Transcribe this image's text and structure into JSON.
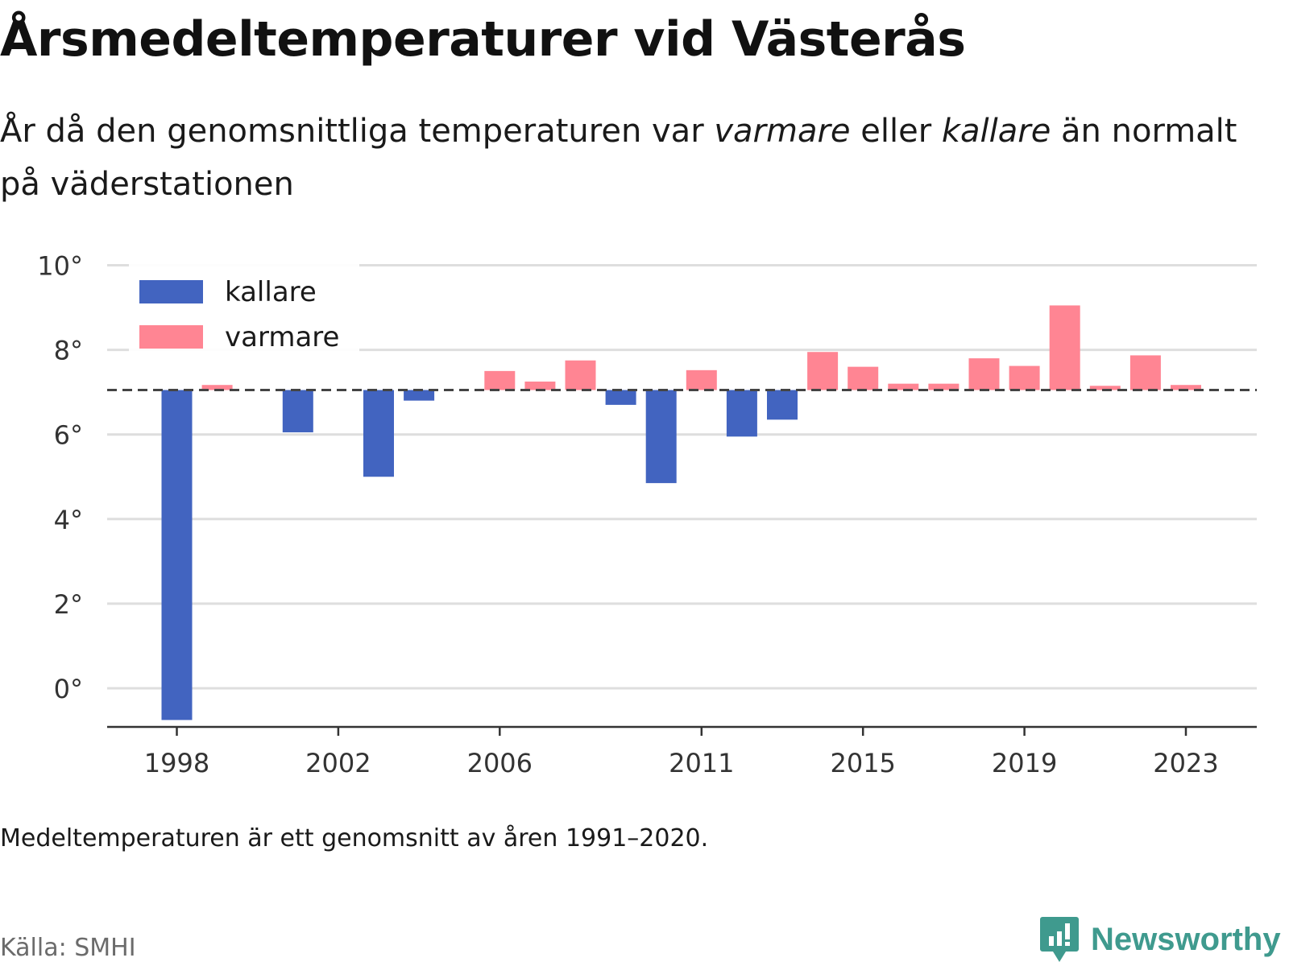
{
  "title": "Årsmedeltemperaturer vid Västerås",
  "subtitle": {
    "part1": "År då den genomsnittliga temperaturen var ",
    "warm_word": "varmare",
    "part2": " eller ",
    "cold_word": "kallare",
    "part3": " än normalt på väderstationen"
  },
  "note": "Medeltemperaturen är ett genomsnitt av åren 1991–2020.",
  "source": "Källa: SMHI",
  "brand": {
    "name": "Newsworthy",
    "icon": "newsworthy-logo-icon",
    "color": "#3f9a8e"
  },
  "colors": {
    "cold": "#4264c0",
    "warm": "#ff8593",
    "grid": "#dedede",
    "axis": "#333333",
    "reference": "#444444"
  },
  "chart_data": {
    "type": "bar",
    "reference_value": 7.05,
    "ylim": [
      -0.9,
      10
    ],
    "yticks": [
      0,
      2,
      4,
      6,
      8,
      10
    ],
    "ytick_labels": [
      "0°",
      "2°",
      "4°",
      "6°",
      "8°",
      "10°"
    ],
    "xtick_labels": [
      "1998",
      "2002",
      "2006",
      "2011",
      "2015",
      "2019",
      "2023"
    ],
    "grid": true,
    "legend_position": "top-left",
    "series": [
      {
        "name": "kallare",
        "color": "#4264c0"
      },
      {
        "name": "varmare",
        "color": "#ff8593"
      }
    ],
    "years": [
      1998,
      1999,
      2000,
      2001,
      2002,
      2003,
      2004,
      2005,
      2006,
      2007,
      2008,
      2009,
      2010,
      2011,
      2012,
      2013,
      2014,
      2015,
      2016,
      2017,
      2018,
      2019,
      2020,
      2021,
      2022,
      2023
    ],
    "values": [
      -0.75,
      7.17,
      null,
      6.05,
      null,
      5.0,
      6.8,
      null,
      7.5,
      7.25,
      7.75,
      6.7,
      4.85,
      7.52,
      5.95,
      6.35,
      7.95,
      7.6,
      7.2,
      7.2,
      7.8,
      7.62,
      9.05,
      7.15,
      7.87,
      7.17
    ]
  }
}
